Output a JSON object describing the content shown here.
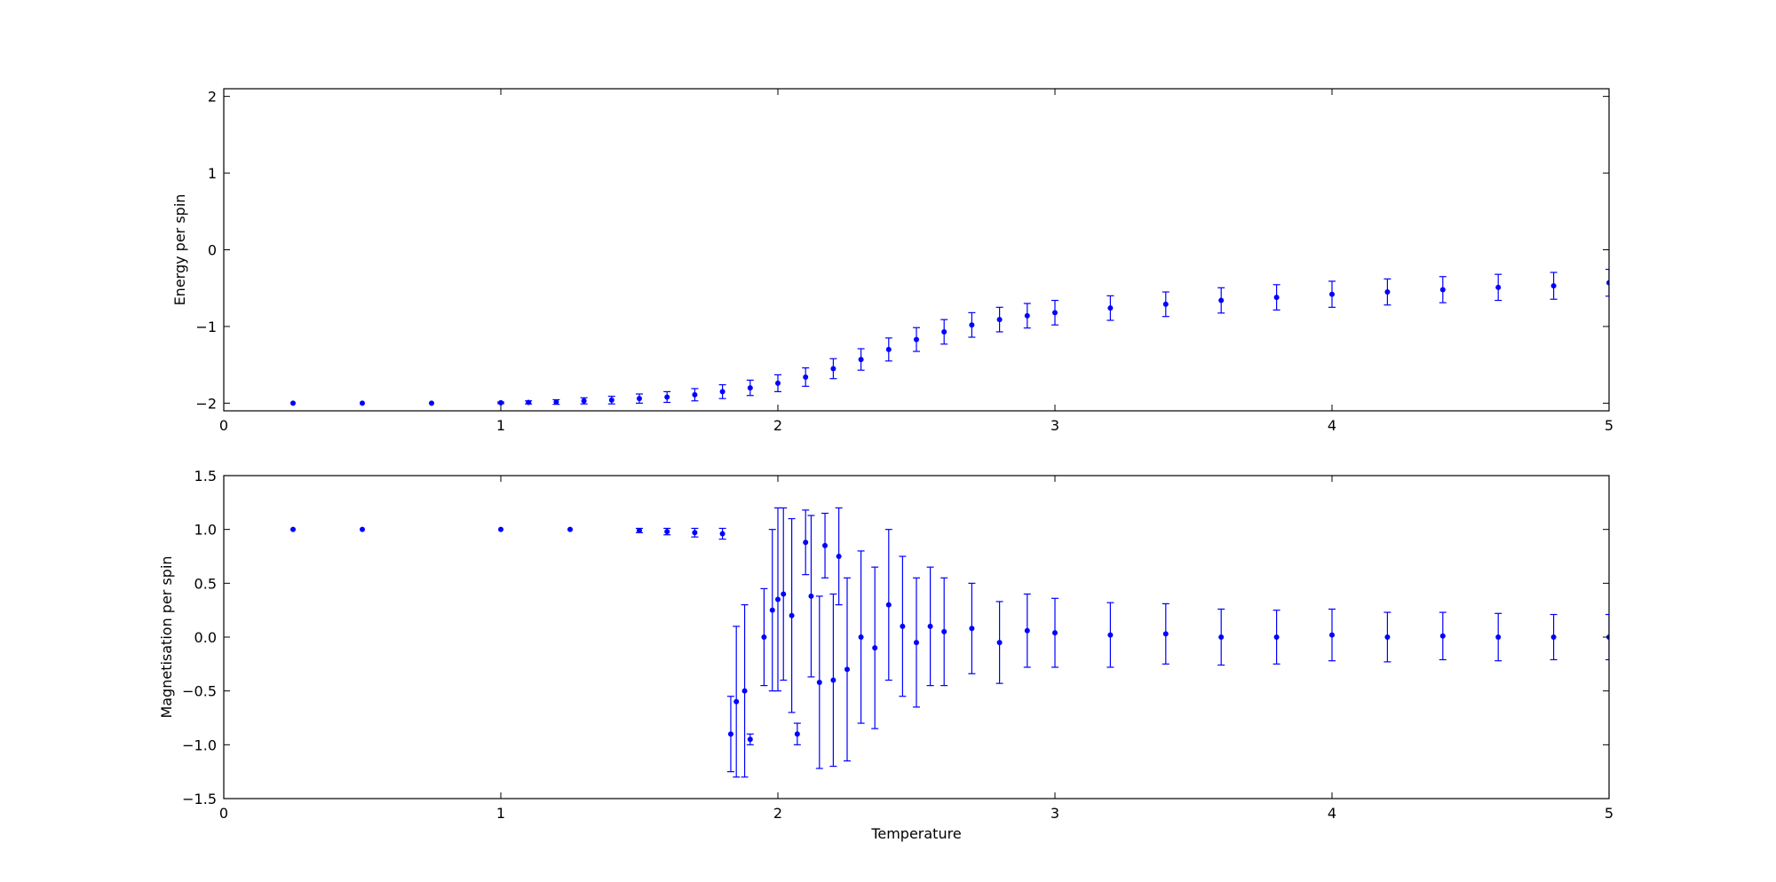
{
  "chart_data": [
    {
      "type": "scatter",
      "style": "errorbar",
      "title": "",
      "xlabel": "",
      "ylabel": "Energy per spin",
      "xlim": [
        0,
        5
      ],
      "ylim": [
        -2.1,
        2.1
      ],
      "xticks": [
        0,
        1,
        2,
        3,
        4,
        5
      ],
      "xtick_labels": [
        "0",
        "1",
        "2",
        "3",
        "4",
        "5"
      ],
      "yticks": [
        -2,
        -1,
        0,
        1,
        2
      ],
      "ytick_labels": [
        "−2",
        "−1",
        "0",
        "1",
        "2"
      ],
      "grid": false,
      "legend": "none",
      "color": "#0000ff",
      "series": [
        {
          "x": [
            0.25,
            0.5,
            0.75,
            1.0,
            1.1,
            1.2,
            1.3,
            1.4,
            1.5,
            1.6,
            1.7,
            1.8,
            1.9,
            2.0,
            2.1,
            2.2,
            2.3,
            2.4,
            2.5,
            2.6,
            2.7,
            2.8,
            2.9,
            3.0,
            3.2,
            3.4,
            3.6,
            3.8,
            4.0,
            4.2,
            4.4,
            4.6,
            4.8,
            5.0
          ],
          "y": [
            -2.0,
            -2.0,
            -2.0,
            -1.995,
            -1.99,
            -1.985,
            -1.97,
            -1.96,
            -1.94,
            -1.92,
            -1.89,
            -1.85,
            -1.8,
            -1.74,
            -1.66,
            -1.55,
            -1.43,
            -1.3,
            -1.17,
            -1.07,
            -0.98,
            -0.91,
            -0.86,
            -0.82,
            -0.76,
            -0.71,
            -0.66,
            -0.62,
            -0.58,
            -0.55,
            -0.52,
            -0.49,
            -0.47,
            -0.43
          ],
          "yerr": [
            0.0,
            0.0,
            0.0,
            0.01,
            0.02,
            0.03,
            0.04,
            0.05,
            0.06,
            0.07,
            0.08,
            0.09,
            0.1,
            0.11,
            0.12,
            0.13,
            0.14,
            0.15,
            0.155,
            0.16,
            0.16,
            0.16,
            0.16,
            0.16,
            0.16,
            0.16,
            0.165,
            0.165,
            0.17,
            0.17,
            0.17,
            0.17,
            0.175,
            0.175
          ]
        }
      ]
    },
    {
      "type": "scatter",
      "style": "errorbar",
      "title": "",
      "xlabel": "Temperature",
      "ylabel": "Magnetisation per spin",
      "xlim": [
        0,
        5
      ],
      "ylim": [
        -1.5,
        1.5
      ],
      "xticks": [
        0,
        1,
        2,
        3,
        4,
        5
      ],
      "xtick_labels": [
        "0",
        "1",
        "2",
        "3",
        "4",
        "5"
      ],
      "yticks": [
        -1.5,
        -1.0,
        -0.5,
        0.0,
        0.5,
        1.0,
        1.5
      ],
      "ytick_labels": [
        "−1.5",
        "−1.0",
        "−0.5",
        "0.0",
        "0.5",
        "1.0",
        "1.5"
      ],
      "grid": false,
      "legend": "none",
      "color": "#0000ff",
      "series": [
        {
          "x": [
            0.25,
            0.5,
            1.0,
            1.25,
            1.5,
            1.6,
            1.7,
            1.8,
            1.83,
            1.85,
            1.88,
            1.9,
            1.95,
            1.98,
            2.0,
            2.02,
            2.05,
            2.07,
            2.1,
            2.12,
            2.15,
            2.17,
            2.2,
            2.22,
            2.25,
            2.3,
            2.35,
            2.4,
            2.45,
            2.5,
            2.55,
            2.6,
            2.7,
            2.8,
            2.9,
            3.0,
            3.2,
            3.4,
            3.6,
            3.8,
            4.0,
            4.2,
            4.4,
            4.6,
            4.8,
            5.0
          ],
          "y": [
            1.0,
            1.0,
            1.0,
            1.0,
            0.99,
            0.98,
            0.97,
            0.96,
            -0.9,
            -0.6,
            -0.5,
            -0.95,
            0.0,
            0.25,
            0.35,
            0.4,
            0.2,
            -0.9,
            0.88,
            0.38,
            -0.42,
            0.85,
            -0.4,
            0.75,
            -0.3,
            0.0,
            -0.1,
            0.3,
            0.1,
            -0.05,
            0.1,
            0.05,
            0.08,
            -0.05,
            0.06,
            0.04,
            0.02,
            0.03,
            0.0,
            0.0,
            0.02,
            0.0,
            0.01,
            0.0,
            0.0,
            0.0
          ],
          "yerr": [
            0.0,
            0.0,
            0.0,
            0.0,
            0.02,
            0.03,
            0.04,
            0.05,
            0.35,
            0.7,
            0.8,
            0.05,
            0.45,
            0.75,
            0.85,
            0.8,
            0.9,
            0.1,
            0.3,
            0.75,
            0.8,
            0.3,
            0.8,
            0.45,
            0.85,
            0.8,
            0.75,
            0.7,
            0.65,
            0.6,
            0.55,
            0.5,
            0.42,
            0.38,
            0.34,
            0.32,
            0.3,
            0.28,
            0.26,
            0.25,
            0.24,
            0.23,
            0.22,
            0.22,
            0.21,
            0.21
          ]
        }
      ]
    }
  ]
}
